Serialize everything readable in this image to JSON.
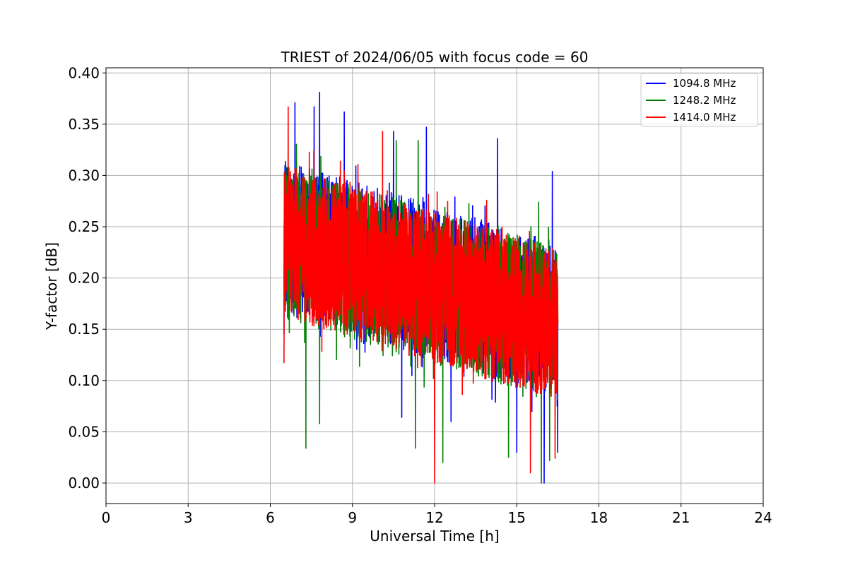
{
  "chart_data": {
    "type": "line",
    "title": "TRIEST of 2024/06/05 with focus code = 60",
    "xlabel": "Universal Time [h]",
    "ylabel": "Y-factor [dB]",
    "xlim": [
      0,
      24
    ],
    "ylim": [
      -0.02,
      0.405
    ],
    "xticks": [
      0,
      3,
      6,
      9,
      12,
      15,
      18,
      21,
      24
    ],
    "xtick_labels": [
      "0",
      "3",
      "6",
      "9",
      "12",
      "15",
      "18",
      "21",
      "24"
    ],
    "yticks": [
      0.0,
      0.05,
      0.1,
      0.15,
      0.2,
      0.25,
      0.3,
      0.35,
      0.4
    ],
    "ytick_labels": [
      "0.00",
      "0.05",
      "0.10",
      "0.15",
      "0.20",
      "0.25",
      "0.30",
      "0.35",
      "0.40"
    ],
    "grid": true,
    "legend_position": "top-right",
    "x_start": 6.5,
    "x_end": 16.5,
    "series": [
      {
        "name": "1094.8 MHz",
        "color": "#0000ff",
        "start": [
          6.5,
          0.145
        ],
        "trend": [
          [
            6.5,
            0.24
          ],
          [
            16.5,
            0.16
          ]
        ],
        "spread": 0.075,
        "peaks": [
          [
            6.9,
            0.371
          ],
          [
            7.6,
            0.367
          ],
          [
            7.8,
            0.381
          ],
          [
            8.7,
            0.362
          ],
          [
            10.5,
            0.343
          ],
          [
            11.7,
            0.347
          ],
          [
            14.3,
            0.336
          ],
          [
            16.3,
            0.304
          ]
        ],
        "troughs": [
          [
            10.8,
            0.064
          ],
          [
            12.6,
            0.06
          ],
          [
            15.0,
            0.03
          ],
          [
            16.0,
            0.0
          ],
          [
            16.5,
            0.03
          ]
        ]
      },
      {
        "name": "1248.2 MHz",
        "color": "#008000",
        "start": [
          6.5,
          0.21
        ],
        "trend": [
          [
            6.5,
            0.235
          ],
          [
            16.5,
            0.155
          ]
        ],
        "spread": 0.075,
        "peaks": [
          [
            10.6,
            0.334
          ],
          [
            11.4,
            0.334
          ],
          [
            15.8,
            0.274
          ]
        ],
        "troughs": [
          [
            7.3,
            0.034
          ],
          [
            7.8,
            0.058
          ],
          [
            11.3,
            0.034
          ],
          [
            12.3,
            0.02
          ],
          [
            14.7,
            0.025
          ],
          [
            15.9,
            0.0
          ],
          [
            16.2,
            0.022
          ]
        ]
      },
      {
        "name": "1414.0 MHz",
        "color": "#ff0000",
        "start": [
          6.5,
          0.12
        ],
        "trend": [
          [
            6.5,
            0.235
          ],
          [
            16.5,
            0.155
          ]
        ],
        "spread": 0.075,
        "peaks": [
          [
            6.5,
            0.387
          ],
          [
            6.65,
            0.367
          ],
          [
            10.1,
            0.343
          ]
        ],
        "troughs": [
          [
            6.5,
            0.117
          ],
          [
            12.0,
            0.0
          ],
          [
            15.5,
            0.01
          ],
          [
            16.4,
            0.024
          ]
        ]
      }
    ]
  }
}
